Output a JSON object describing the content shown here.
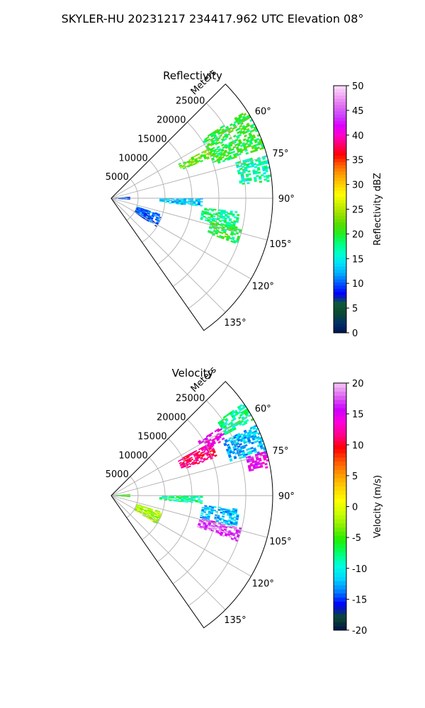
{
  "figure": {
    "title": "SKYLER-HU  20231217  234417.962 UTC Elevation 08°"
  },
  "chart_data": [
    {
      "type": "heatmap",
      "projection": "polar-sector",
      "title": "Reflectivity",
      "radial_label": "Meters",
      "radial_ticks": [
        5000,
        10000,
        15000,
        20000,
        25000
      ],
      "r_max": 30000,
      "azimuth_range": [
        45,
        145
      ],
      "azimuth_ticks": [
        "60°",
        "75°",
        "90°",
        "105°",
        "120°",
        "135°"
      ],
      "grid": true,
      "colorbar": {
        "label": "Reflectivity dBZ",
        "range": [
          0,
          50
        ],
        "ticks": [
          0,
          5,
          10,
          15,
          20,
          25,
          30,
          35,
          40,
          45,
          50
        ]
      },
      "echo_regions": [
        {
          "az": [
            57,
            72
          ],
          "r": [
            20000,
            30000
          ],
          "value": 20
        },
        {
          "az": [
            63,
            68
          ],
          "r": [
            14000,
            21000
          ],
          "value": 22
        },
        {
          "az": [
            74,
            84
          ],
          "r": [
            24000,
            30000
          ],
          "value": 17
        },
        {
          "az": [
            96,
            104
          ],
          "r": [
            17000,
            24000
          ],
          "value": 18
        },
        {
          "az": [
            103,
            110
          ],
          "r": [
            19000,
            25000
          ],
          "value": 20
        },
        {
          "az": [
            86,
            94
          ],
          "r": [
            500,
            3500
          ],
          "value": 10
        },
        {
          "az": [
            90,
            95
          ],
          "r": [
            9000,
            17000
          ],
          "value": 13
        },
        {
          "az": [
            108,
            122
          ],
          "r": [
            5000,
            10000
          ],
          "value": 10
        }
      ]
    },
    {
      "type": "heatmap",
      "projection": "polar-sector",
      "title": "Velocity",
      "radial_label": "Meters",
      "radial_ticks": [
        5000,
        10000,
        15000,
        20000,
        25000
      ],
      "r_max": 30000,
      "azimuth_range": [
        45,
        145
      ],
      "azimuth_ticks": [
        "60°",
        "75°",
        "90°",
        "105°",
        "120°",
        "135°"
      ],
      "grid": true,
      "colorbar": {
        "label": "Velocity (m/s)",
        "range": [
          -20,
          20
        ],
        "ticks": [
          -20,
          -15,
          -10,
          -5,
          0,
          5,
          10,
          15,
          20
        ]
      },
      "echo_regions": [
        {
          "az": [
            62,
            70
          ],
          "r": [
            14000,
            21000
          ],
          "value": 11
        },
        {
          "az": [
            58,
            64
          ],
          "r": [
            19000,
            24000
          ],
          "value": 14
        },
        {
          "az": [
            55,
            62
          ],
          "r": [
            24000,
            30000
          ],
          "value": -8
        },
        {
          "az": [
            64,
            74
          ],
          "r": [
            23000,
            30000
          ],
          "value": -12
        },
        {
          "az": [
            74,
            80
          ],
          "r": [
            26000,
            30000
          ],
          "value": 15
        },
        {
          "az": [
            96,
            104
          ],
          "r": [
            17000,
            24000
          ],
          "value": -12
        },
        {
          "az": [
            104,
            110
          ],
          "r": [
            17000,
            25000
          ],
          "value": 17
        },
        {
          "az": [
            86,
            94
          ],
          "r": [
            500,
            3500
          ],
          "value": -5
        },
        {
          "az": [
            90,
            95
          ],
          "r": [
            9000,
            17000
          ],
          "value": -8
        },
        {
          "az": [
            108,
            122
          ],
          "r": [
            5000,
            10000
          ],
          "value": -2
        }
      ]
    }
  ]
}
